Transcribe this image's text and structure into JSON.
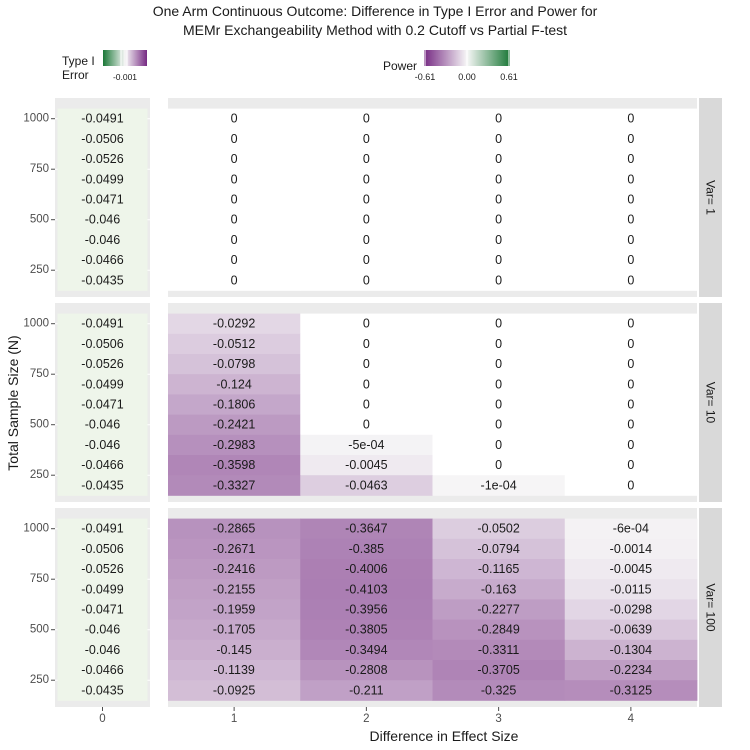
{
  "chart_data": {
    "type": "heatmap",
    "title_lines": [
      "One Arm Continuous Outcome: Difference in Type I Error and Power for",
      "MEMr Exchangeability Method with 0.2 Cutoff vs Partial F-test"
    ],
    "xlabel": "Difference in Effect Size",
    "ylabel": "Total Sample Size (N)",
    "x_ticks": [
      "0",
      "1",
      "2",
      "3",
      "4"
    ],
    "y_ticks": [
      "1000",
      "750",
      "500",
      "250"
    ],
    "legends": {
      "type1": {
        "title_lines": [
          "Type I",
          "Error"
        ],
        "tick_text": "-0.001",
        "color_low": "#1b7837",
        "color_mid": "#f7f7f7",
        "color_high": "#762a83"
      },
      "power": {
        "title": "Power",
        "ticks": [
          "-0.61",
          "0.00",
          "0.61"
        ],
        "range": [
          -0.61,
          0.61
        ],
        "color_low": "#762a83",
        "color_mid": "#f7f7f7",
        "color_high": "#1b7837"
      }
    },
    "rows_n": [
      1000,
      900,
      800,
      700,
      600,
      500,
      400,
      300,
      200
    ],
    "type1_values": [
      "-0.0491",
      "-0.0506",
      "-0.0526",
      "-0.0499",
      "-0.0471",
      "-0.046",
      "-0.046",
      "-0.0466",
      "-0.0435"
    ],
    "type1_fill": "#eef5ea",
    "facets": [
      {
        "strip": "Var= 1",
        "power_values": [
          [
            "0",
            "0",
            "0",
            "0"
          ],
          [
            "0",
            "0",
            "0",
            "0"
          ],
          [
            "0",
            "0",
            "0",
            "0"
          ],
          [
            "0",
            "0",
            "0",
            "0"
          ],
          [
            "0",
            "0",
            "0",
            "0"
          ],
          [
            "0",
            "0",
            "0",
            "0"
          ],
          [
            "0",
            "0",
            "0",
            "0"
          ],
          [
            "0",
            "0",
            "0",
            "0"
          ],
          [
            "0",
            "0",
            "0",
            "0"
          ]
        ]
      },
      {
        "strip": "Var= 10",
        "power_values": [
          [
            "-0.0292",
            "0",
            "0",
            "0"
          ],
          [
            "-0.0512",
            "0",
            "0",
            "0"
          ],
          [
            "-0.0798",
            "0",
            "0",
            "0"
          ],
          [
            "-0.124",
            "0",
            "0",
            "0"
          ],
          [
            "-0.1806",
            "0",
            "0",
            "0"
          ],
          [
            "-0.2421",
            "0",
            "0",
            "0"
          ],
          [
            "-0.2983",
            "-5e-04",
            "0",
            "0"
          ],
          [
            "-0.3598",
            "-0.0045",
            "0",
            "0"
          ],
          [
            "-0.3327",
            "-0.0463",
            "-1e-04",
            "0"
          ]
        ]
      },
      {
        "strip": "Var= 100",
        "power_values": [
          [
            "-0.2865",
            "-0.3647",
            "-0.0502",
            "-6e-04"
          ],
          [
            "-0.2671",
            "-0.385",
            "-0.0794",
            "-0.0014"
          ],
          [
            "-0.2416",
            "-0.4006",
            "-0.1165",
            "-0.0045"
          ],
          [
            "-0.2155",
            "-0.4103",
            "-0.163",
            "-0.0115"
          ],
          [
            "-0.1959",
            "-0.3956",
            "-0.2277",
            "-0.0298"
          ],
          [
            "-0.1705",
            "-0.3805",
            "-0.2849",
            "-0.0639"
          ],
          [
            "-0.145",
            "-0.3494",
            "-0.3311",
            "-0.1304"
          ],
          [
            "-0.1139",
            "-0.2808",
            "-0.3705",
            "-0.2234"
          ],
          [
            "-0.0925",
            "-0.211",
            "-0.325",
            "-0.3125"
          ]
        ]
      }
    ]
  }
}
